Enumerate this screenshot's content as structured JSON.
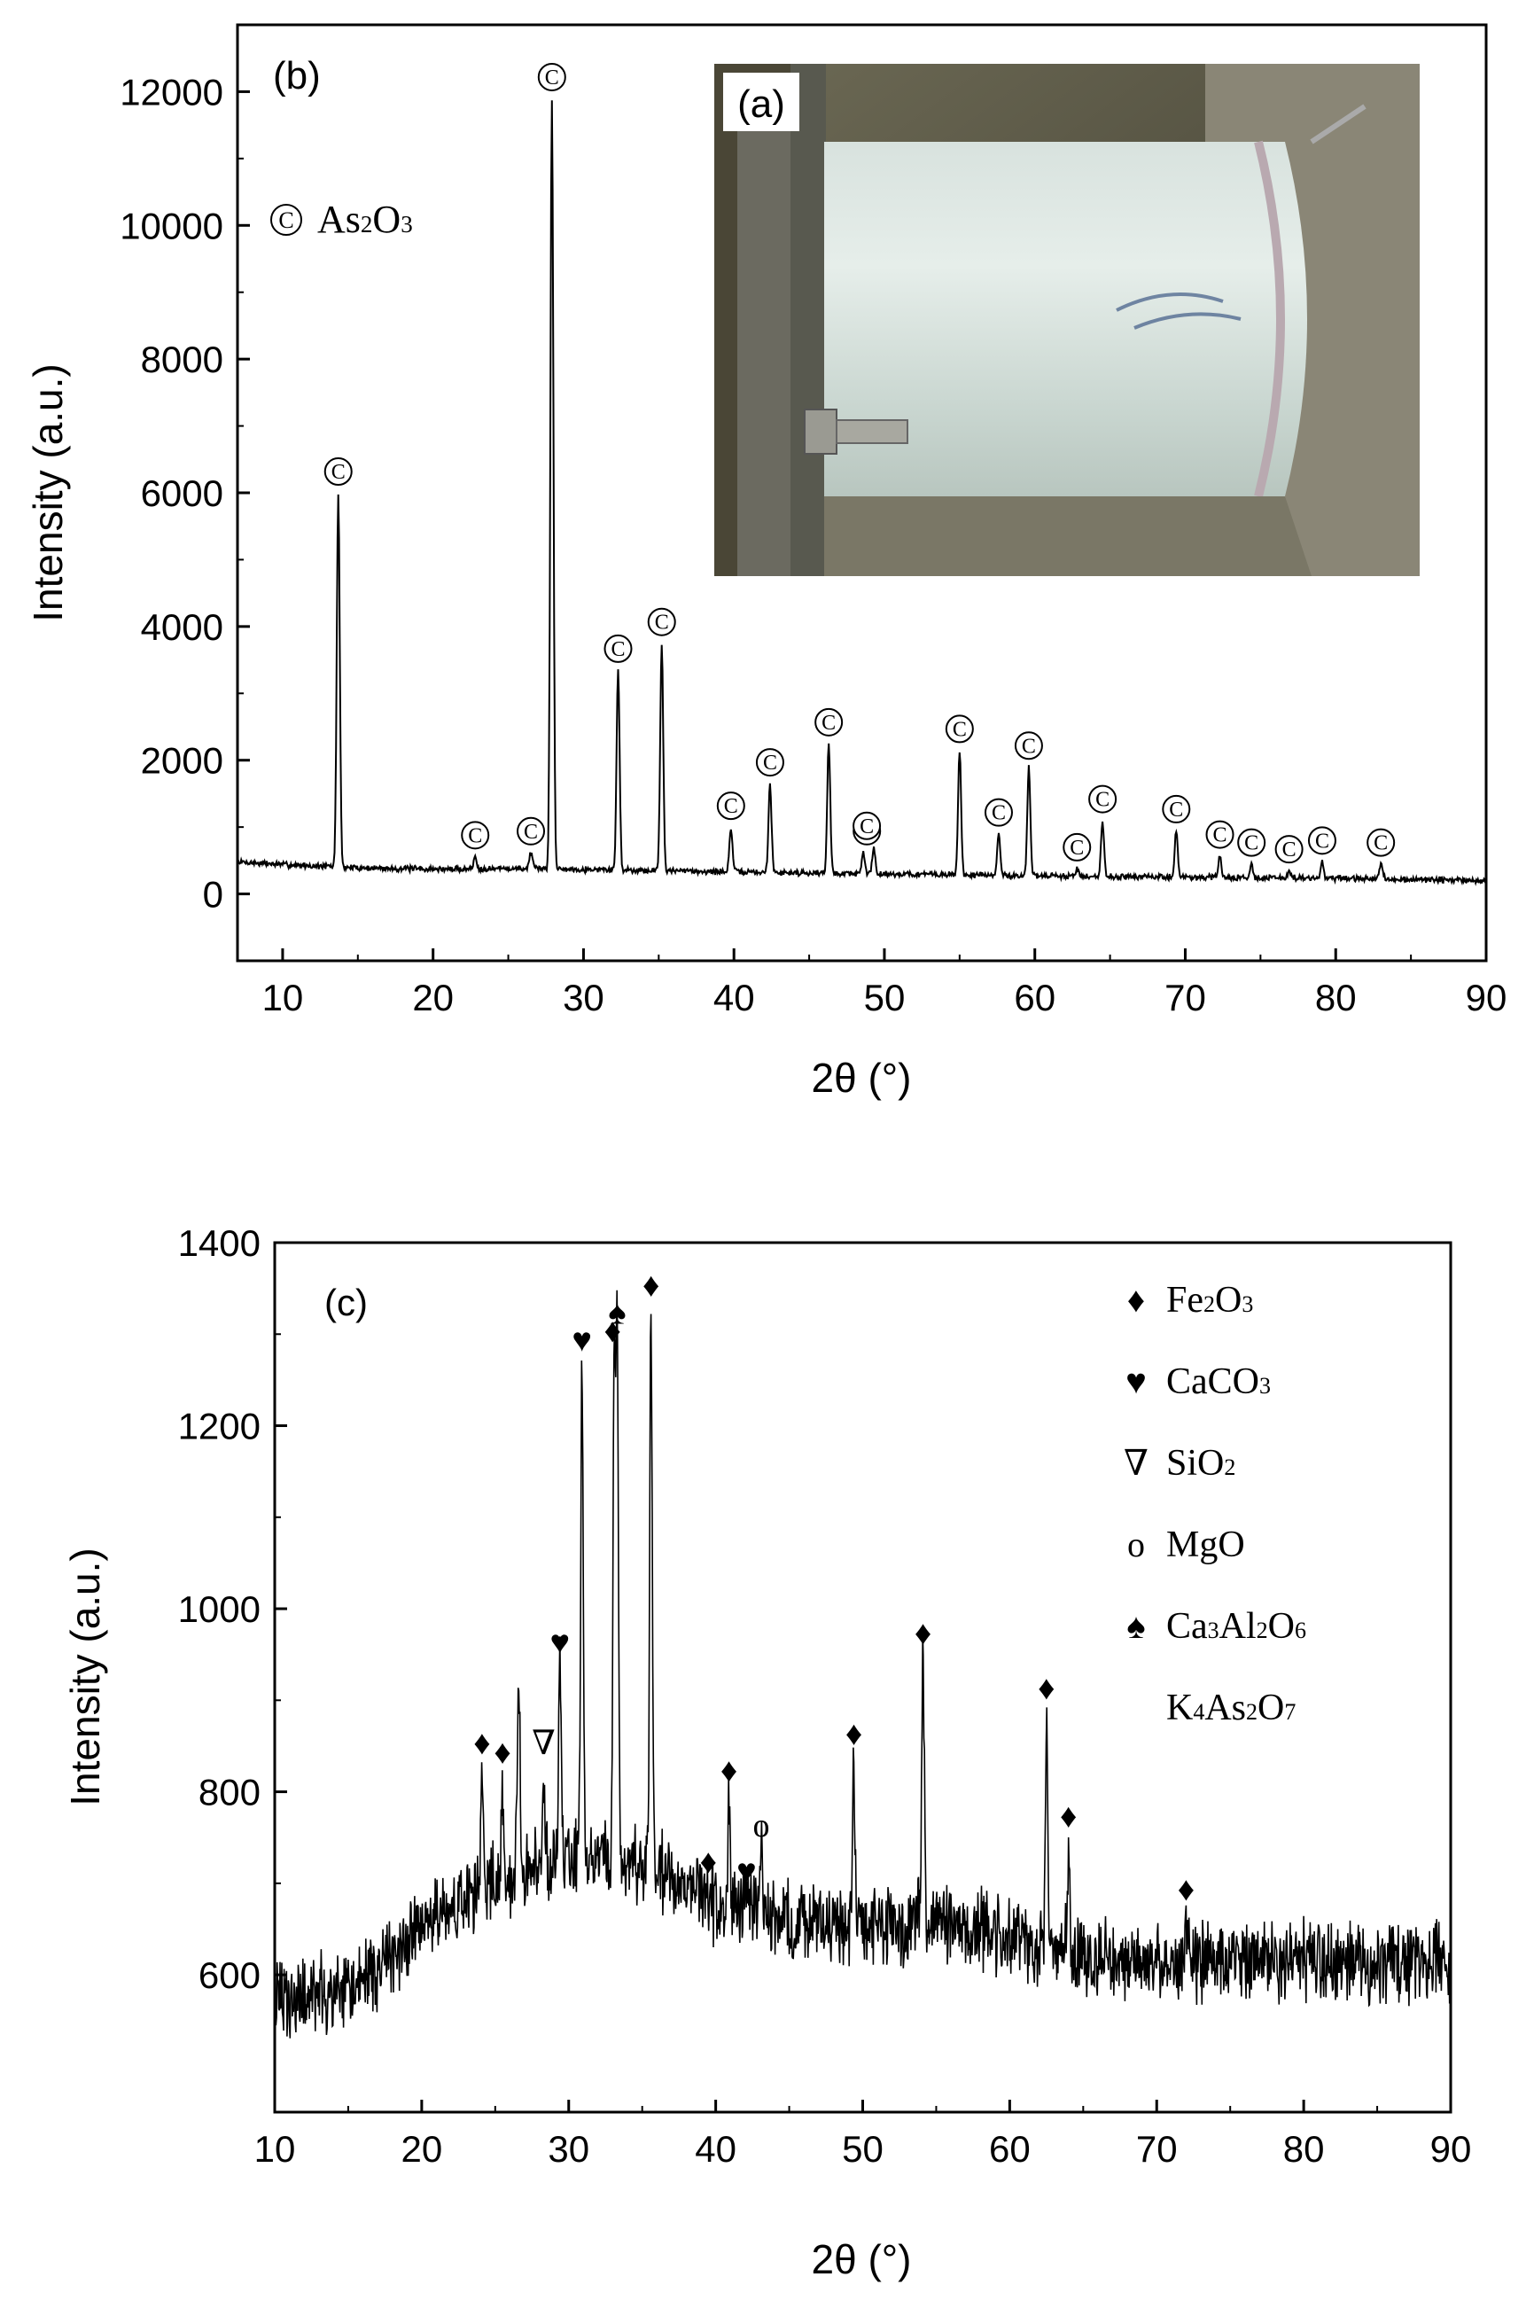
{
  "chart_data": [
    {
      "panel_label": "(b)",
      "type": "line",
      "xlabel": "2θ (°)",
      "ylabel": "Intensity (a.u.)",
      "xlim": [
        7,
        90
      ],
      "ylim": [
        -1000,
        13000
      ],
      "xticks": [
        10,
        20,
        30,
        40,
        50,
        60,
        70,
        80,
        90
      ],
      "yticks": [
        0,
        2000,
        4000,
        6000,
        8000,
        10000,
        12000
      ],
      "legend": [
        {
          "symbol": "©",
          "label": "As2O3",
          "label_parts": [
            {
              "t": "As",
              "s": false
            },
            {
              "t": "2",
              "s": true
            },
            {
              "t": "O",
              "s": false
            },
            {
              "t": "3",
              "s": true
            }
          ]
        }
      ],
      "legend_placement": "top-left",
      "baseline": [
        [
          7,
          480
        ],
        [
          10,
          440
        ],
        [
          15,
          390
        ],
        [
          20,
          370
        ],
        [
          25,
          380
        ],
        [
          30,
          370
        ],
        [
          40,
          330
        ],
        [
          50,
          300
        ],
        [
          60,
          270
        ],
        [
          70,
          250
        ],
        [
          80,
          230
        ],
        [
          90,
          200
        ]
      ],
      "peaks": [
        {
          "x": 13.7,
          "y": 6000,
          "marker": "©"
        },
        {
          "x": 22.8,
          "y": 560,
          "marker": "©"
        },
        {
          "x": 26.5,
          "y": 620,
          "marker": "©"
        },
        {
          "x": 27.9,
          "y": 11900,
          "marker": "©"
        },
        {
          "x": 32.3,
          "y": 3350,
          "marker": "©"
        },
        {
          "x": 35.2,
          "y": 3750,
          "marker": "©"
        },
        {
          "x": 39.8,
          "y": 1000,
          "marker": "©"
        },
        {
          "x": 42.4,
          "y": 1650,
          "marker": "©"
        },
        {
          "x": 46.3,
          "y": 2250,
          "marker": "©"
        },
        {
          "x": 48.6,
          "y": 620,
          "marker": "©"
        },
        {
          "x": 49.3,
          "y": 700,
          "marker": "©"
        },
        {
          "x": 55.0,
          "y": 2150,
          "marker": "©"
        },
        {
          "x": 57.6,
          "y": 900,
          "marker": "©"
        },
        {
          "x": 59.6,
          "y": 1900,
          "marker": "©"
        },
        {
          "x": 62.8,
          "y": 380,
          "marker": "©"
        },
        {
          "x": 64.5,
          "y": 1100,
          "marker": "©"
        },
        {
          "x": 69.4,
          "y": 950,
          "marker": "©"
        },
        {
          "x": 72.3,
          "y": 570,
          "marker": "©"
        },
        {
          "x": 74.4,
          "y": 450,
          "marker": "©"
        },
        {
          "x": 76.9,
          "y": 350,
          "marker": "©"
        },
        {
          "x": 79.1,
          "y": 480,
          "marker": "©"
        },
        {
          "x": 83.0,
          "y": 450,
          "marker": "©"
        }
      ],
      "inset": {
        "label": "(a)"
      }
    },
    {
      "panel_label": "(c)",
      "type": "line",
      "xlabel": "2θ (°)",
      "ylabel": "Intensity (a.u.)",
      "xlim": [
        10,
        90
      ],
      "ylim": [
        450,
        1400
      ],
      "xticks": [
        10,
        20,
        30,
        40,
        50,
        60,
        70,
        80,
        90
      ],
      "yticks": [
        600,
        800,
        1000,
        1200,
        1400
      ],
      "legend": [
        {
          "symbol": "♦",
          "label": "Fe2O3",
          "label_parts": [
            {
              "t": "Fe",
              "s": false
            },
            {
              "t": "2",
              "s": true
            },
            {
              "t": "O",
              "s": false
            },
            {
              "t": "3",
              "s": true
            }
          ]
        },
        {
          "symbol": "♥",
          "label": "CaCO3",
          "label_parts": [
            {
              "t": "CaCO",
              "s": false
            },
            {
              "t": "3",
              "s": true
            }
          ]
        },
        {
          "symbol": "∇",
          "label": "SiO2",
          "label_parts": [
            {
              "t": "SiO",
              "s": false
            },
            {
              "t": "2",
              "s": true
            }
          ]
        },
        {
          "symbol": "o",
          "label": "MgO",
          "label_parts": [
            {
              "t": "MgO",
              "s": false
            }
          ]
        },
        {
          "symbol": "♠",
          "label": "Ca3Al2O6",
          "label_parts": [
            {
              "t": "Ca",
              "s": false
            },
            {
              "t": "3",
              "s": true
            },
            {
              "t": "Al",
              "s": false
            },
            {
              "t": "2",
              "s": true
            },
            {
              "t": "O",
              "s": false
            },
            {
              "t": "6",
              "s": true
            }
          ]
        },
        {
          "symbol": "",
          "label": "K4As2O7",
          "label_parts": [
            {
              "t": "K",
              "s": false
            },
            {
              "t": "4",
              "s": true
            },
            {
              "t": "As",
              "s": false
            },
            {
              "t": "2",
              "s": true
            },
            {
              "t": "O",
              "s": false
            },
            {
              "t": "7",
              "s": true
            }
          ]
        }
      ],
      "legend_placement": "top-right",
      "baseline": [
        [
          10,
          570
        ],
        [
          15,
          580
        ],
        [
          20,
          650
        ],
        [
          25,
          700
        ],
        [
          30,
          730
        ],
        [
          35,
          720
        ],
        [
          40,
          680
        ],
        [
          45,
          660
        ],
        [
          50,
          650
        ],
        [
          55,
          660
        ],
        [
          60,
          640
        ],
        [
          65,
          620
        ],
        [
          70,
          615
        ],
        [
          80,
          615
        ],
        [
          90,
          615
        ]
      ],
      "peaks": [
        {
          "x": 24.1,
          "y": 820,
          "marker": "♦"
        },
        {
          "x": 25.5,
          "y": 810,
          "marker": "♦"
        },
        {
          "x": 26.6,
          "y": 935,
          "marker": ""
        },
        {
          "x": 28.3,
          "y": 820,
          "marker": "∇"
        },
        {
          "x": 29.4,
          "y": 930,
          "marker": "♥"
        },
        {
          "x": 30.9,
          "y": 1260,
          "marker": "♥"
        },
        {
          "x": 33.1,
          "y": 1270,
          "marker": "♦"
        },
        {
          "x": 33.3,
          "y": 1290,
          "marker": "♠"
        },
        {
          "x": 35.6,
          "y": 1320,
          "marker": "♦"
        },
        {
          "x": 39.5,
          "y": 690,
          "marker": "♦"
        },
        {
          "x": 40.9,
          "y": 790,
          "marker": "♦"
        },
        {
          "x": 42.1,
          "y": 680,
          "marker": "♥"
        },
        {
          "x": 43.1,
          "y": 730,
          "marker": "o"
        },
        {
          "x": 49.4,
          "y": 830,
          "marker": "♦"
        },
        {
          "x": 54.1,
          "y": 940,
          "marker": "♦"
        },
        {
          "x": 62.5,
          "y": 880,
          "marker": "♦"
        },
        {
          "x": 64.0,
          "y": 740,
          "marker": "♦"
        },
        {
          "x": 72.0,
          "y": 660,
          "marker": "♦"
        }
      ]
    }
  ]
}
